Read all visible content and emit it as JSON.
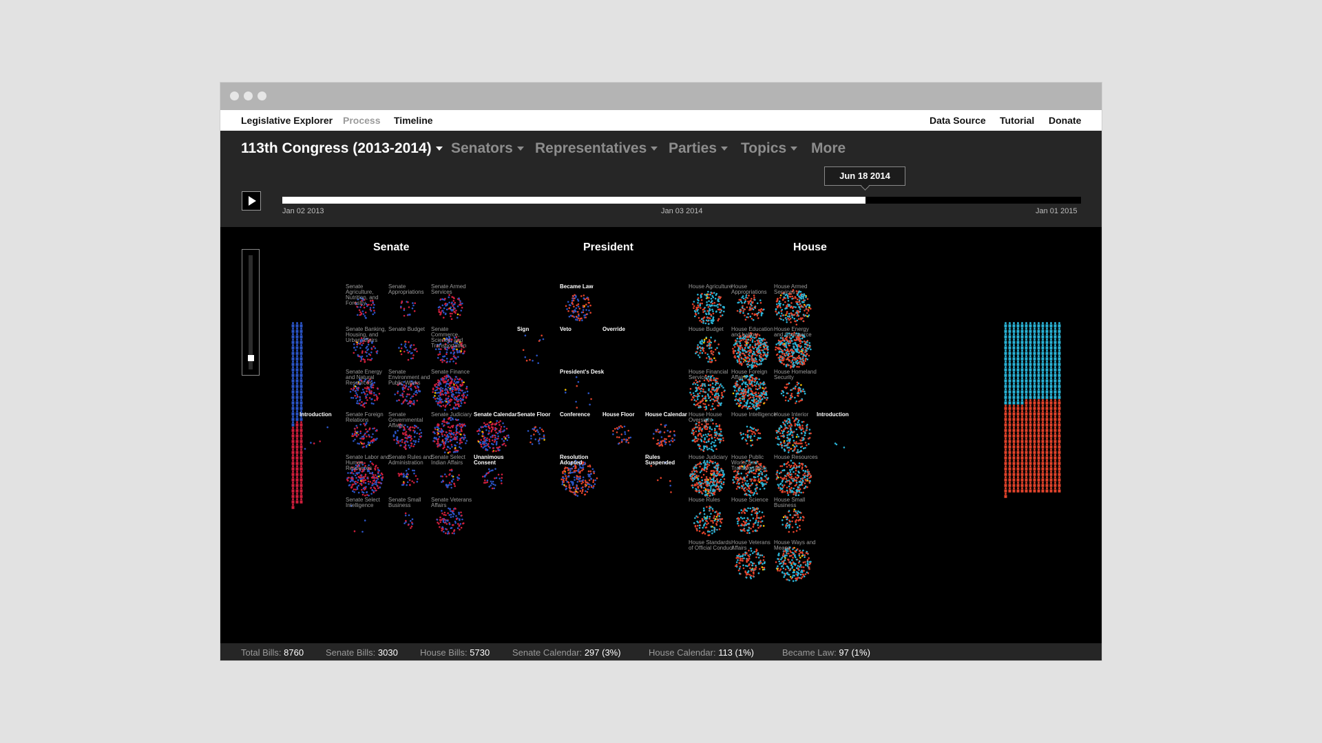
{
  "window": {
    "dots": 3
  },
  "nav": {
    "app_title": "Legislative Explorer",
    "process": "Process",
    "timeline": "Timeline",
    "data_source": "Data Source",
    "tutorial": "Tutorial",
    "donate": "Donate"
  },
  "menus": {
    "congress": "113th Congress (2013-2014)",
    "senators": "Senators",
    "representatives": "Representatives",
    "parties": "Parties",
    "topics": "Topics",
    "more": "More"
  },
  "timeline": {
    "start_label": "Jan 02 2013",
    "mid_label": "Jan 03 2014",
    "end_label": "Jan 01 2015",
    "current_label": "Jun 18 2014",
    "progress": 0.73
  },
  "zoom": {
    "level": 0.1
  },
  "sections": {
    "senate": "Senate",
    "president": "President",
    "house": "House"
  },
  "stages": [
    {
      "id": "senate-intro",
      "label": "Introduction",
      "bright": true,
      "col": "si",
      "row": 3,
      "dots": 5,
      "density": "sparse"
    },
    {
      "id": "s-agri",
      "label": "Senate Agriculture, Nutrition, and Forestry",
      "col": "s1",
      "row": 0,
      "dots": 45
    },
    {
      "id": "s-approp",
      "label": "Senate Appropriations",
      "col": "s2",
      "row": 0,
      "dots": 20
    },
    {
      "id": "s-armed",
      "label": "Senate Armed Services",
      "col": "s3",
      "row": 0,
      "dots": 75
    },
    {
      "id": "s-banking",
      "label": "Senate Banking, Housing, and Urban Affairs",
      "col": "s1",
      "row": 1,
      "dots": 70
    },
    {
      "id": "s-budget",
      "label": "Senate Budget",
      "col": "s2",
      "row": 1,
      "dots": 30
    },
    {
      "id": "s-commerce",
      "label": "Senate Commerce, Science, and Transportation",
      "col": "s3",
      "row": 1,
      "dots": 110
    },
    {
      "id": "s-energy",
      "label": "Senate Energy and Natural Resources",
      "col": "s1",
      "row": 2,
      "dots": 110
    },
    {
      "id": "s-env",
      "label": "Senate Environment and Public Works",
      "col": "s2",
      "row": 2,
      "dots": 90
    },
    {
      "id": "s-finance",
      "label": "Senate Finance",
      "col": "s3",
      "row": 2,
      "dots": 260
    },
    {
      "id": "s-foreign",
      "label": "Senate Foreign Relations",
      "col": "s1",
      "row": 3,
      "dots": 80
    },
    {
      "id": "s-gov",
      "label": "Senate Governmental Affairs",
      "col": "s2",
      "row": 3,
      "dots": 100
    },
    {
      "id": "s-judiciary",
      "label": "Senate Judiciary",
      "col": "s3",
      "row": 3,
      "dots": 200
    },
    {
      "id": "s-calendar",
      "label": "Senate Calendar",
      "bright": true,
      "col": "s4",
      "row": 3,
      "dots": 150
    },
    {
      "id": "s-labor",
      "label": "Senate Labor and Human Resources",
      "col": "s1",
      "row": 4,
      "dots": 200
    },
    {
      "id": "s-rules",
      "label": "Senate Rules and Administration",
      "col": "s2",
      "row": 4,
      "dots": 35
    },
    {
      "id": "s-indian",
      "label": "Senate Select Indian Affairs",
      "col": "s3",
      "row": 4,
      "dots": 35
    },
    {
      "id": "s-unanimous",
      "label": "Unanimous Consent",
      "bright": true,
      "col": "s4",
      "row": 4,
      "dots": 35
    },
    {
      "id": "s-intel",
      "label": "Senate Select Intelligence",
      "col": "s1",
      "row": 5,
      "dots": 4,
      "density": "sparse"
    },
    {
      "id": "s-small",
      "label": "Senate Small Business",
      "col": "s2",
      "row": 5,
      "dots": 14
    },
    {
      "id": "s-veterans",
      "label": "Senate Veterans Affairs",
      "col": "s3",
      "row": 5,
      "dots": 90
    },
    {
      "id": "p-became",
      "label": "Became Law",
      "bright": true,
      "col": "p2",
      "row": 0,
      "dots": 85
    },
    {
      "id": "p-sign",
      "label": "Sign",
      "bright": true,
      "col": "p1",
      "row": 1,
      "dots": 12,
      "density": "sparse"
    },
    {
      "id": "p-veto",
      "label": "Veto",
      "bright": true,
      "col": "p2",
      "row": 1,
      "dots": 0
    },
    {
      "id": "p-override",
      "label": "Override",
      "bright": true,
      "col": "p3",
      "row": 1,
      "dots": 0
    },
    {
      "id": "p-desk",
      "label": "President's Desk",
      "bright": true,
      "col": "p2",
      "row": 2,
      "dots": 10,
      "density": "sparse"
    },
    {
      "id": "s-floor",
      "label": "Senate Floor",
      "bright": true,
      "col": "p1",
      "row": 3,
      "dots": 30
    },
    {
      "id": "conference",
      "label": "Conference",
      "bright": true,
      "col": "p2",
      "row": 3,
      "dots": 0
    },
    {
      "id": "h-floor",
      "label": "House Floor",
      "bright": true,
      "col": "p3",
      "row": 3,
      "dots": 30
    },
    {
      "id": "h-calendar",
      "label": "House Calendar",
      "bright": true,
      "col": "p4",
      "row": 3,
      "dots": 55
    },
    {
      "id": "resolution",
      "label": "Resolution Adopted",
      "bright": true,
      "col": "p2",
      "row": 4,
      "dots": 200
    },
    {
      "id": "rules-susp",
      "label": "Rules Suspended",
      "bright": true,
      "col": "p4",
      "row": 4,
      "dots": 7,
      "density": "sparse"
    },
    {
      "id": "h-agri",
      "label": "House Agriculture",
      "col": "h1",
      "row": 0,
      "dots": 160
    },
    {
      "id": "h-approp",
      "label": "House Appropriations",
      "col": "h2",
      "row": 0,
      "dots": 90
    },
    {
      "id": "h-armed",
      "label": "House Armed Services",
      "col": "h3",
      "row": 0,
      "dots": 200
    },
    {
      "id": "h-budget",
      "label": "House Budget",
      "col": "h1",
      "row": 1,
      "dots": 80
    },
    {
      "id": "h-edu",
      "label": "House Education and Labor",
      "col": "h2",
      "row": 1,
      "dots": 330
    },
    {
      "id": "h-energy",
      "label": "House Energy and Commerce",
      "col": "h3",
      "row": 1,
      "dots": 330
    },
    {
      "id": "h-fin",
      "label": "House Financial Services",
      "col": "h1",
      "row": 2,
      "dots": 200
    },
    {
      "id": "h-foreign",
      "label": "House Foreign Affairs",
      "col": "h2",
      "row": 2,
      "dots": 280
    },
    {
      "id": "h-homeland",
      "label": "House Homeland Security",
      "col": "h3",
      "row": 2,
      "dots": 60
    },
    {
      "id": "h-oversight",
      "label": "House House Oversight",
      "col": "h1",
      "row": 3,
      "dots": 160
    },
    {
      "id": "h-intel",
      "label": "House Intelligence",
      "col": "h2",
      "row": 3,
      "dots": 45
    },
    {
      "id": "h-interior",
      "label": "House Interior",
      "col": "h3",
      "row": 3,
      "dots": 200
    },
    {
      "id": "h-judiciary",
      "label": "House Judiciary",
      "col": "h1",
      "row": 4,
      "dots": 300
    },
    {
      "id": "h-public",
      "label": "House Public Works and Transportation",
      "col": "h2",
      "row": 4,
      "dots": 200
    },
    {
      "id": "h-resources",
      "label": "House Resources",
      "col": "h3",
      "row": 4,
      "dots": 220
    },
    {
      "id": "h-rules",
      "label": "House Rules",
      "col": "h1",
      "row": 5,
      "dots": 110
    },
    {
      "id": "h-science",
      "label": "House Science",
      "col": "h2",
      "row": 5,
      "dots": 110
    },
    {
      "id": "h-small",
      "label": "House Small Business",
      "col": "h3",
      "row": 5,
      "dots": 60
    },
    {
      "id": "h-standards",
      "label": "House Standards of Official Conduct",
      "col": "h1",
      "row": 6,
      "dots": 0
    },
    {
      "id": "h-veterans",
      "label": "House Veterans Affairs",
      "col": "h2",
      "row": 6,
      "dots": 130
    },
    {
      "id": "h-ways",
      "label": "House Ways and Means",
      "col": "h3",
      "row": 6,
      "dots": 200
    },
    {
      "id": "house-intro",
      "label": "Introduction",
      "bright": true,
      "col": "hi",
      "row": 3,
      "dots": 3,
      "density": "sparse"
    }
  ],
  "members": {
    "senate": {
      "democrat": 55,
      "republican": 45
    },
    "house": {
      "democrat": 201,
      "republican": 234
    }
  },
  "colors": {
    "senate_democrat": "#2a54c6",
    "senate_republican": "#d01e3c",
    "house_democrat": "#2ab3d6",
    "house_republican": "#e2432b",
    "highlight": "#f2c200",
    "background": "#000000",
    "panel": "#262626"
  },
  "stats": {
    "total_label": "Total Bills:",
    "total_value": "8760",
    "senate_label": "Senate Bills:",
    "senate_value": "3030",
    "house_label": "House Bills:",
    "house_value": "5730",
    "scal_label": "Senate Calendar:",
    "scal_value": "297 (3%)",
    "hcal_label": "House Calendar:",
    "hcal_value": "113 (1%)",
    "law_label": "Became Law:",
    "law_value": "97 (1%)"
  }
}
